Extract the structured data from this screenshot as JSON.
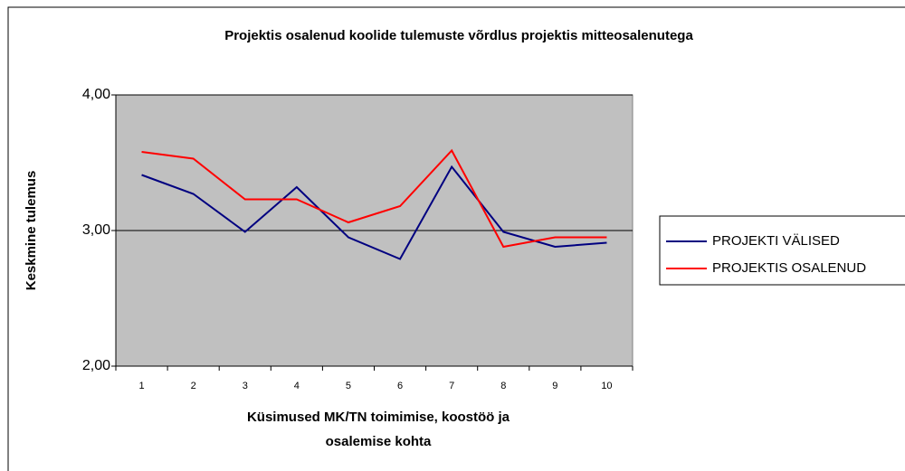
{
  "chart_data": {
    "type": "line",
    "title": "Projektis osalenud koolide tulemuste võrdlus projektis mitteosalenutega",
    "x_label": [
      "Küsimused MK/TN toimimise, koostöö ja",
      "osalemise kohta"
    ],
    "y_label": "Keskmine tulemus",
    "categories": [
      "1",
      "2",
      "3",
      "4",
      "5",
      "6",
      "7",
      "8",
      "9",
      "10"
    ],
    "series": [
      {
        "name": "PROJEKTI VÄLISED",
        "color": "#000080",
        "values": [
          3.41,
          3.27,
          2.99,
          3.32,
          2.95,
          2.79,
          3.47,
          2.99,
          2.88,
          2.91
        ]
      },
      {
        "name": "PROJEKTIS OSALENUD",
        "color": "#ff0000",
        "values": [
          3.58,
          3.53,
          3.23,
          3.23,
          3.06,
          3.18,
          3.59,
          2.88,
          2.95,
          2.95
        ]
      }
    ],
    "ylim": [
      2,
      4
    ],
    "yticks": [
      {
        "value": 2,
        "label": "2,00"
      },
      {
        "value": 3,
        "label": "3,00"
      },
      {
        "value": 4,
        "label": "4,00"
      }
    ],
    "grid": true,
    "legend": "right"
  }
}
